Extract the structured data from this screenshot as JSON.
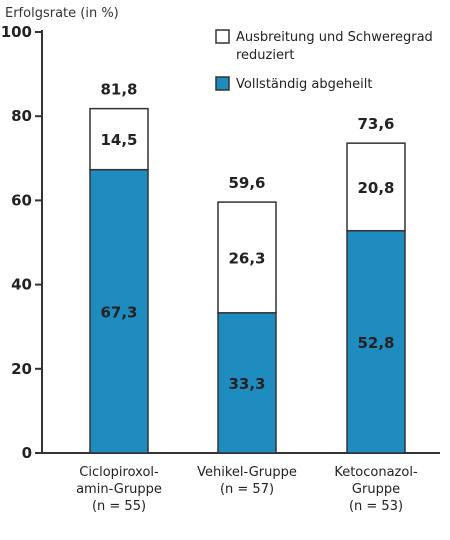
{
  "chart_data": {
    "type": "bar",
    "stacked": true,
    "ylabel": "Erfolgsrate (in %)",
    "ylim": [
      0,
      100
    ],
    "yticks": [
      "0",
      "20",
      "40",
      "60",
      "80",
      "100"
    ],
    "categories": [
      [
        "Ciclopiroxol-",
        "amin-Gruppe",
        "(n = 55)"
      ],
      [
        "Vehikel-Gruppe",
        "(n = 57)"
      ],
      [
        "Ketoconazol-",
        "Gruppe",
        "(n = 53)"
      ]
    ],
    "series": [
      {
        "name": "Vollständig abgeheilt",
        "color": "#1f8cc0",
        "values": [
          67.3,
          33.3,
          52.8
        ],
        "labels": [
          "67,3",
          "33,3",
          "52,8"
        ]
      },
      {
        "name": "Ausbreitung und Schweregrad reduziert",
        "legend_lines": [
          "Ausbreitung und Schweregrad",
          "reduziert"
        ],
        "color": "#ffffff",
        "values": [
          14.5,
          26.3,
          20.8
        ],
        "labels": [
          "14,5",
          "26,3",
          "20,8"
        ]
      }
    ],
    "totals": [
      81.8,
      59.6,
      73.6
    ],
    "total_labels": [
      "81,8",
      "59,6",
      "73,6"
    ],
    "grid": false,
    "legend_position": "top-right"
  }
}
